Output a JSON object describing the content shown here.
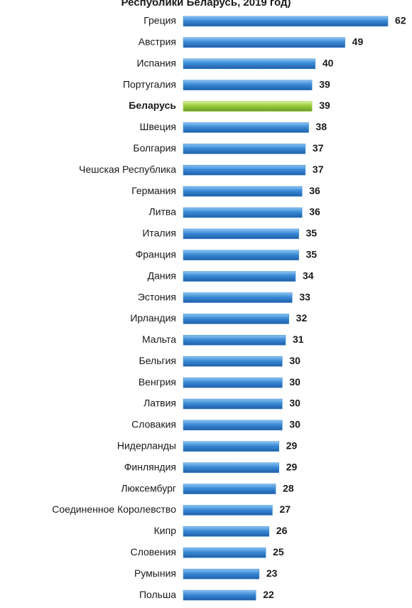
{
  "chart_data": {
    "type": "barh",
    "title": "Республики Беларусь, 2019 год)",
    "categories": [
      "Греция",
      "Австрия",
      "Испания",
      "Португалия",
      "Беларусь",
      "Швеция",
      "Болгария",
      "Чешская Республика",
      "Германия",
      "Литва",
      "Италия",
      "Франция",
      "Дания",
      "Эстония",
      "Ирландия",
      "Мальта",
      "Бельгия",
      "Венгрия",
      "Латвия",
      "Словакия",
      "Нидерланды",
      "Финляндия",
      "Люксембург",
      "Соединенное Королевство",
      "Кипр",
      "Словения",
      "Румыния",
      "Польша"
    ],
    "values": [
      62,
      49,
      40,
      39,
      39,
      38,
      37,
      37,
      36,
      36,
      35,
      35,
      34,
      33,
      32,
      31,
      30,
      30,
      30,
      30,
      29,
      29,
      28,
      27,
      26,
      25,
      23,
      22
    ],
    "color": "#3a8ad6",
    "highlight_index": 4,
    "highlight_color": "#9acb3c",
    "xlim": [
      0,
      65
    ]
  }
}
